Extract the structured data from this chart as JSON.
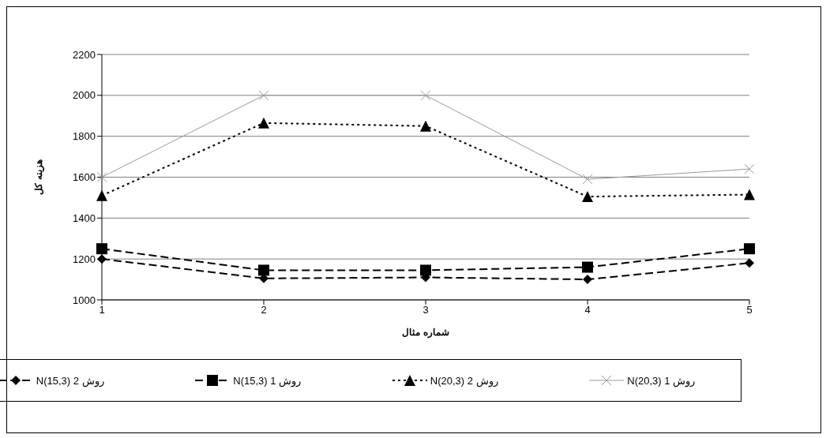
{
  "chart_data": {
    "type": "line",
    "xlabel": "شماره مثال",
    "ylabel": "هزینه کل",
    "categories": [
      "1",
      "2",
      "3",
      "4",
      "5"
    ],
    "series": [
      {
        "name": "روش 2 N(15,3)",
        "color": "#000000",
        "marker": "diamond",
        "line_style": "dashed",
        "values": [
          1200,
          1105,
          1110,
          1100,
          1180
        ]
      },
      {
        "name": "روش 1 N(15,3)",
        "color": "#000000",
        "marker": "square",
        "line_style": "dashed",
        "values": [
          1250,
          1145,
          1145,
          1160,
          1250
        ]
      },
      {
        "name": "روش 2 N(20,3)",
        "color": "#000000",
        "marker": "triangle",
        "line_style": "dotted",
        "values": [
          1510,
          1865,
          1850,
          1505,
          1515
        ]
      },
      {
        "name": "روش 1 N(20,3)",
        "color": "#999999",
        "marker": "cross",
        "line_style": "solid",
        "values": [
          1600,
          2000,
          2000,
          1590,
          1640
        ]
      }
    ],
    "ylim": [
      1000,
      2200
    ],
    "yticks": [
      1000,
      1200,
      1400,
      1600,
      1800,
      2000,
      2200
    ],
    "grid": "y",
    "legend": "bottom"
  }
}
